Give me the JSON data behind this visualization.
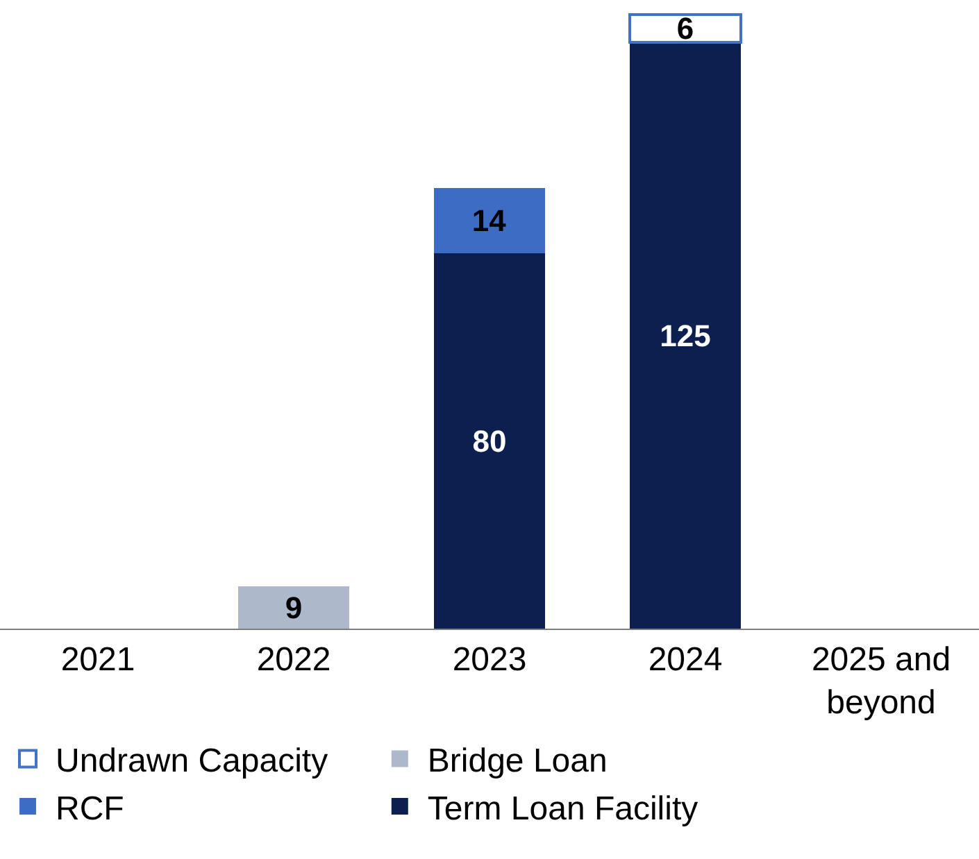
{
  "chart_data": {
    "type": "bar",
    "stacked": true,
    "data_labels": true,
    "legend": "bottom left",
    "categories": [
      "2021",
      "2022",
      "2023",
      "2024",
      "2025 and beyond"
    ],
    "series": [
      {
        "name": "Term Loan Facility",
        "color": "#0c1f4f",
        "values": [
          null,
          null,
          80,
          125,
          null
        ]
      },
      {
        "name": "RCF",
        "color": "#3d6cc4",
        "values": [
          null,
          null,
          14,
          null,
          null
        ]
      },
      {
        "name": "Bridge Loan",
        "color": "#adb9ca",
        "values": [
          null,
          9,
          null,
          null,
          null
        ]
      },
      {
        "name": "Undrawn Capacity",
        "color": "#ffffff",
        "values": [
          null,
          null,
          null,
          6,
          null
        ]
      }
    ]
  }
}
